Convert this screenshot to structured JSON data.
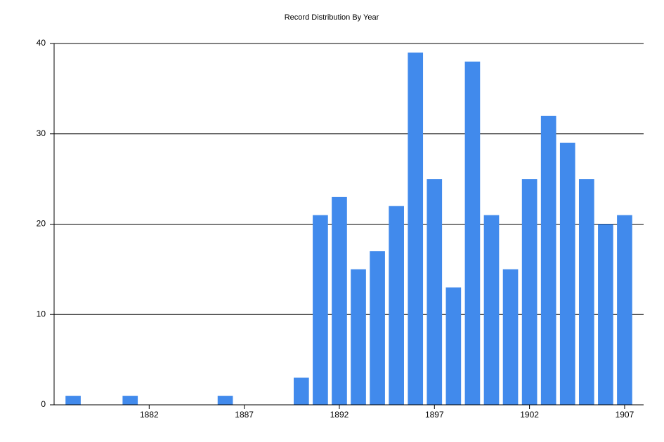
{
  "chart_data": {
    "type": "bar",
    "title": "Record Distribution By Year",
    "x": [
      1878,
      1881,
      1886,
      1890,
      1891,
      1892,
      1893,
      1894,
      1895,
      1896,
      1897,
      1898,
      1899,
      1900,
      1901,
      1902,
      1903,
      1904,
      1905,
      1906,
      1907
    ],
    "values": [
      1,
      1,
      1,
      3,
      21,
      23,
      15,
      17,
      22,
      39,
      25,
      13,
      38,
      21,
      15,
      25,
      32,
      29,
      25,
      20,
      21
    ],
    "color": "#418aec",
    "xlim": [
      1877,
      1908
    ],
    "xticks": [
      1882,
      1887,
      1892,
      1897,
      1902,
      1907
    ],
    "ylim": [
      0,
      40
    ],
    "yticks": [
      0,
      10,
      20,
      30,
      40
    ],
    "grid": true
  }
}
